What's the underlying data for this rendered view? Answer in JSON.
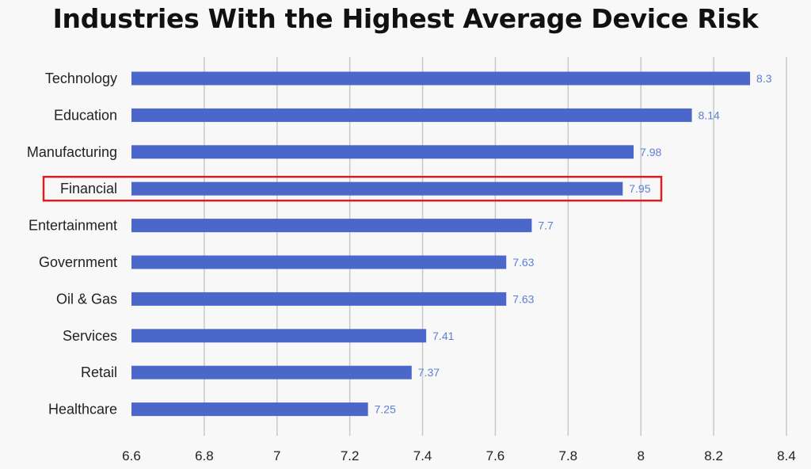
{
  "chart_data": {
    "type": "bar",
    "orientation": "horizontal",
    "title": "Industries With the Highest Average Device Risk",
    "xlabel": "",
    "ylabel": "",
    "categories": [
      "Technology",
      "Education",
      "Manufacturing",
      "Financial",
      "Entertainment",
      "Government",
      "Oil & Gas",
      "Services",
      "Retail",
      "Healthcare"
    ],
    "values": [
      8.3,
      8.14,
      7.98,
      7.95,
      7.7,
      7.63,
      7.63,
      7.41,
      7.37,
      7.25
    ],
    "value_labels": [
      "8.3",
      "8.14",
      "7.98",
      "7.95",
      "7.7",
      "7.63",
      "7.63",
      "7.41",
      "7.37",
      "7.25"
    ],
    "xlim": [
      6.6,
      8.4
    ],
    "xticks": [
      "6.6",
      "6.8",
      "7",
      "7.2",
      "7.4",
      "7.6",
      "7.8",
      "8",
      "8.2",
      "8.4"
    ],
    "grid": "vertical",
    "highlighted_category": "Financial",
    "colors": {
      "bar": "#4a67c9",
      "value_label": "#5b7fd1",
      "grid": "#c8c8c8",
      "highlight_box": "#d81f26",
      "background": "#f8f8f8"
    }
  }
}
